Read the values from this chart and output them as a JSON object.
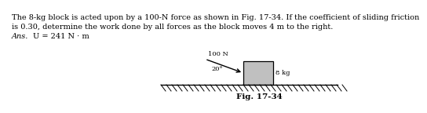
{
  "text_line1": "The 8-kg block is acted upon by a 100-N force as shown in Fig. 17-34. If the coefficient of sliding friction",
  "text_line2": "is 0.30, determine the work done by all forces as the block moves 4 m to the right.",
  "ans_label": "Ans.",
  "ans_value": "U = 241 N · m",
  "fig_label": "Fig. 17-34",
  "force_label": "100 N",
  "angle_label": "20°",
  "block_label": "8 kg",
  "bg_color": "#ffffff",
  "text_color": "#000000",
  "block_color": "#c0c0c0",
  "ground_color": "#000000",
  "hatch_color": "#000000",
  "arrow_color": "#000000",
  "ans_indent": 0.07
}
